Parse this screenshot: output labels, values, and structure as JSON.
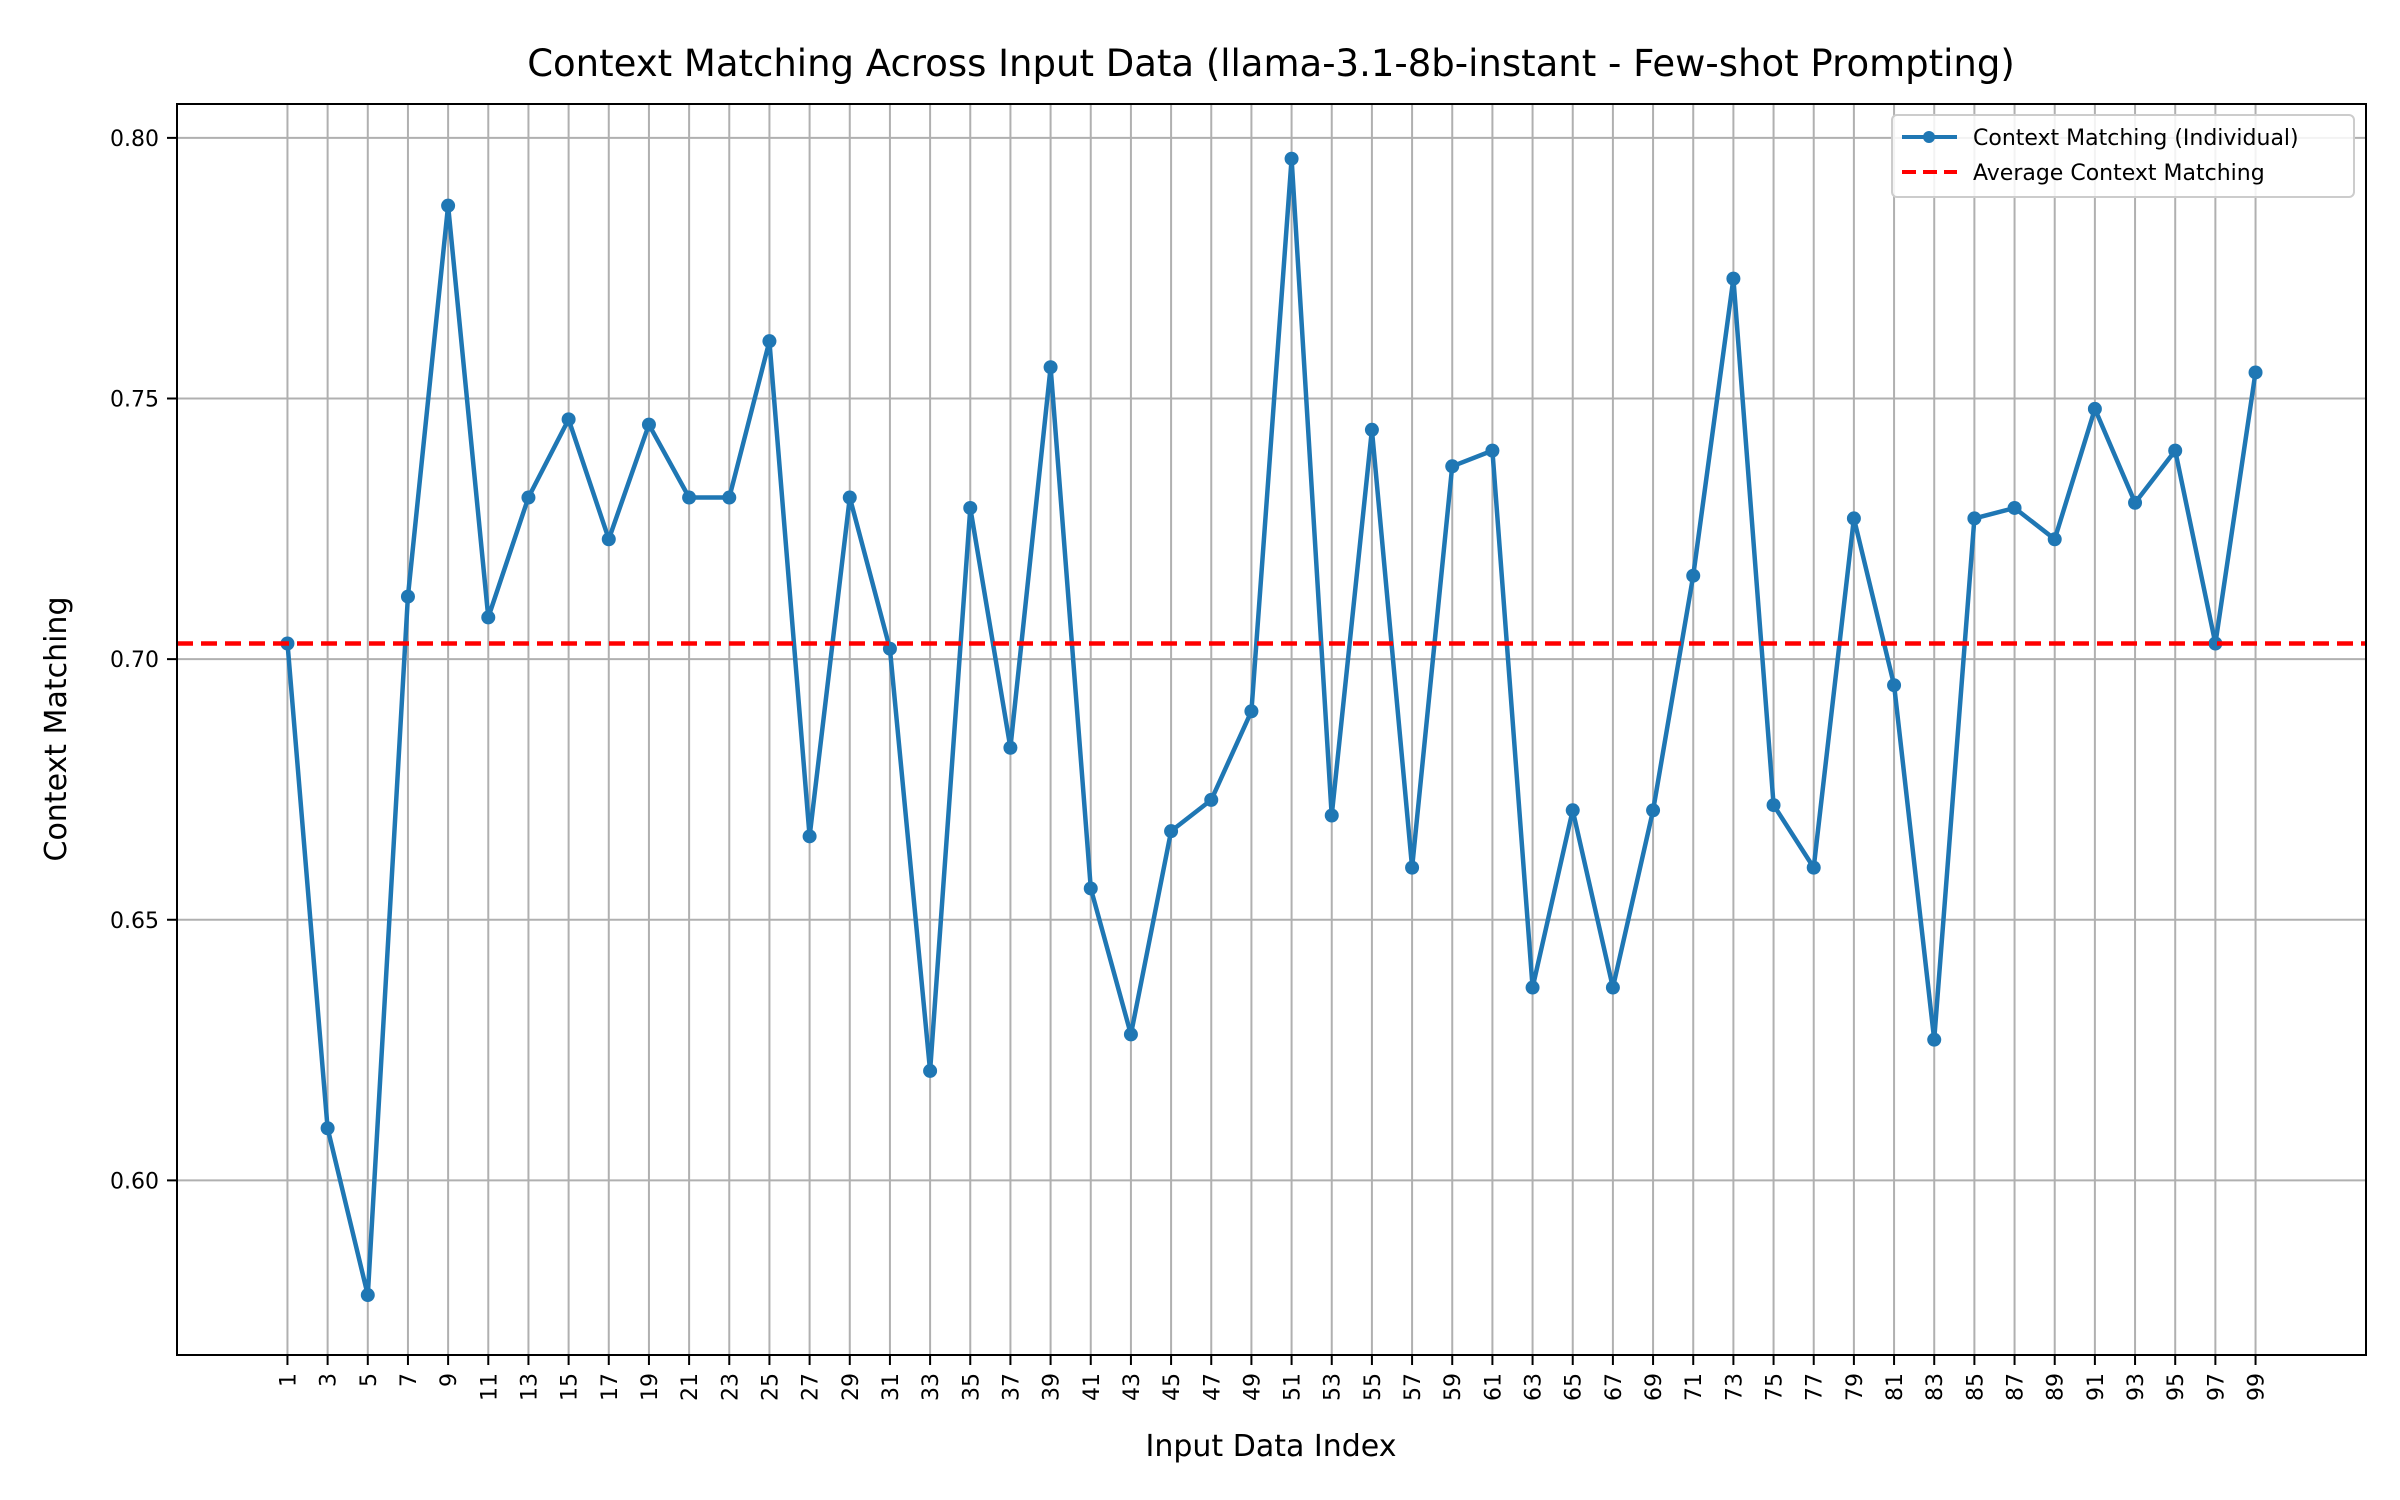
{
  "chart_data": {
    "type": "line",
    "title": "Context Matching Across Input Data (llama-3.1-8b-instant - Few-shot Prompting)",
    "xlabel": "Input Data Index",
    "ylabel": "Context Matching",
    "x": [
      1,
      3,
      5,
      7,
      9,
      11,
      13,
      15,
      17,
      19,
      21,
      23,
      25,
      27,
      29,
      31,
      33,
      35,
      37,
      39,
      41,
      43,
      45,
      47,
      49,
      51,
      53,
      55,
      57,
      59,
      61,
      63,
      65,
      67,
      69,
      71,
      73,
      75,
      77,
      79,
      81,
      83,
      85,
      87,
      89,
      91,
      93,
      95,
      97,
      99
    ],
    "x_tick_labels": [
      "1",
      "3",
      "5",
      "7",
      "9",
      "11",
      "13",
      "15",
      "17",
      "19",
      "21",
      "23",
      "25",
      "27",
      "29",
      "31",
      "33",
      "35",
      "37",
      "39",
      "41",
      "43",
      "45",
      "47",
      "49",
      "51",
      "53",
      "55",
      "57",
      "59",
      "61",
      "63",
      "65",
      "67",
      "69",
      "71",
      "73",
      "75",
      "77",
      "79",
      "81",
      "83",
      "85",
      "87",
      "89",
      "91",
      "93",
      "95",
      "97",
      "99"
    ],
    "y_ticks": [
      0.6,
      0.65,
      0.7,
      0.75,
      0.8
    ],
    "y_tick_labels": [
      "0.60",
      "0.65",
      "0.70",
      "0.75",
      "0.80"
    ],
    "xlim": [
      -4.5,
      104.5
    ],
    "ylim": [
      0.5665,
      0.8065
    ],
    "grid": true,
    "legend_placement": "top-right",
    "series": [
      {
        "name": "Context Matching (Individual)",
        "color": "#1f77b4",
        "style": "solid-with-markers",
        "values": [
          0.703,
          0.61,
          0.578,
          0.712,
          0.787,
          0.708,
          0.731,
          0.746,
          0.723,
          0.745,
          0.731,
          0.731,
          0.761,
          0.666,
          0.731,
          0.702,
          0.621,
          0.729,
          0.683,
          0.756,
          0.656,
          0.628,
          0.667,
          0.673,
          0.69,
          0.796,
          0.67,
          0.744,
          0.66,
          0.737,
          0.74,
          0.637,
          0.671,
          0.637,
          0.671,
          0.716,
          0.773,
          0.672,
          0.66,
          0.727,
          0.695,
          0.627,
          0.727,
          0.729,
          0.723,
          0.748,
          0.73,
          0.74,
          0.703,
          0.755
        ]
      },
      {
        "name": "Average Context Matching",
        "color": "#ff0000",
        "style": "dashed",
        "value": 0.703
      }
    ]
  }
}
